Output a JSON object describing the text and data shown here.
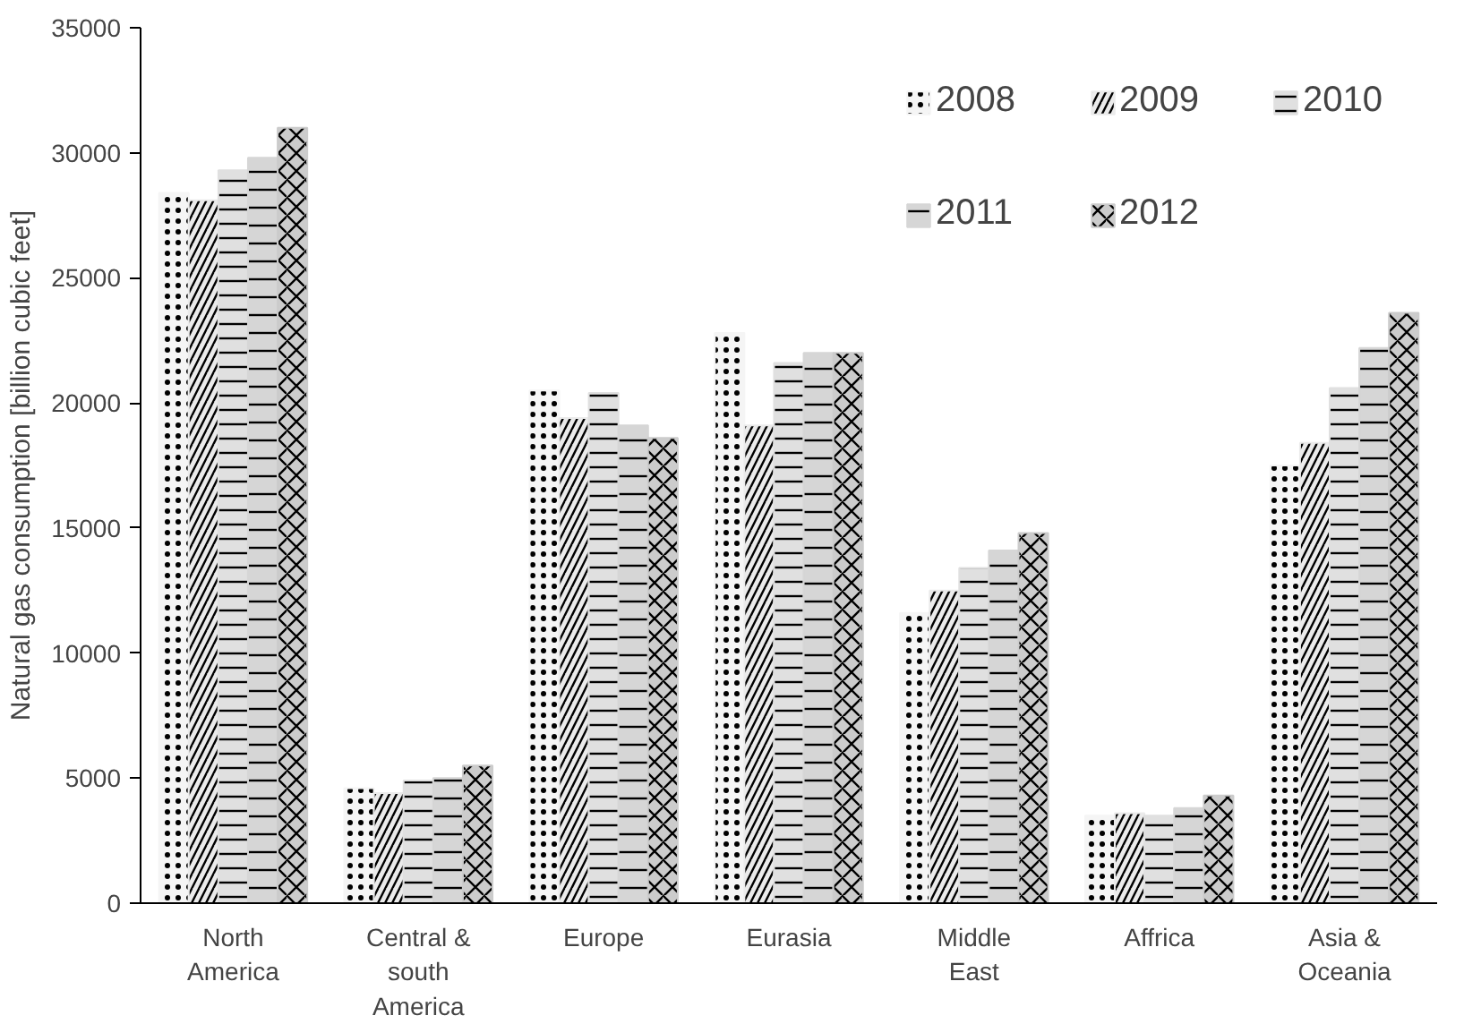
{
  "chart_data": {
    "type": "bar",
    "ylabel": "Natural gas consumption [billion cubic feet]",
    "categories": [
      "North\nAmerica",
      "Central &\nsouth\nAmerica",
      "Europe",
      "Eurasia",
      "Middle\nEast",
      "Affrica",
      "Asia &\nOceania"
    ],
    "series": [
      {
        "name": "2008",
        "color": "#f5f5f5",
        "values": [
          28400,
          4600,
          20500,
          22800,
          11600,
          3500,
          17500
        ]
      },
      {
        "name": "2009",
        "color": "#ebebeb",
        "values": [
          28100,
          4400,
          19400,
          19100,
          12500,
          3600,
          18400
        ]
      },
      {
        "name": "2010",
        "color": "#e0e0e0",
        "values": [
          29300,
          4900,
          20400,
          21600,
          13400,
          3500,
          20600
        ]
      },
      {
        "name": "2011",
        "color": "#d6d6d6",
        "values": [
          29800,
          5000,
          19100,
          22000,
          14100,
          3800,
          22200
        ]
      },
      {
        "name": "2012",
        "color": "#cccccc",
        "values": [
          31000,
          5500,
          18600,
          22000,
          14800,
          4300,
          23600
        ]
      }
    ],
    "ylim": [
      0,
      35000
    ],
    "yticks": [
      0,
      5000,
      10000,
      15000,
      20000,
      25000,
      30000,
      35000
    ],
    "grid": false,
    "legend": "top right"
  }
}
